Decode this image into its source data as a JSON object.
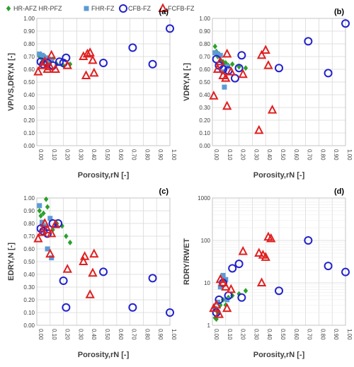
{
  "legend": [
    {
      "label": "HR-AFZ HR-PFZ",
      "marker": "diamond",
      "color": "#2ca02c"
    },
    {
      "label": "FHR-FZ",
      "marker": "square",
      "color": "#5b9bd5"
    },
    {
      "label": "CFB-FZ",
      "marker": "circle",
      "color": "#2222cc"
    },
    {
      "label": "FCFB-FZ",
      "marker": "triangle",
      "color": "#e02020"
    }
  ],
  "chart_data": [
    {
      "panel": "(a)",
      "type": "scatter",
      "ylabel": "VP/VS,DRY,N [-]",
      "xlabel": "Porosity,rN [-]",
      "xlim": [
        0,
        1
      ],
      "ylim": [
        0,
        1
      ],
      "xticks": [
        "0.00",
        "0.10",
        "0.20",
        "0.30",
        "0.40",
        "0.50",
        "0.60",
        "0.70",
        "0.80",
        "0.90",
        "1.00"
      ],
      "yticks": [
        "0.00",
        "0.10",
        "0.20",
        "0.30",
        "0.40",
        "0.50",
        "0.60",
        "0.70",
        "0.80",
        "0.90",
        "1.00"
      ],
      "series": [
        {
          "name": "HR-AFZ HR-PFZ",
          "points": [
            [
              0.02,
              0.7
            ],
            [
              0.03,
              0.72
            ],
            [
              0.04,
              0.68
            ],
            [
              0.05,
              0.66
            ],
            [
              0.06,
              0.7
            ],
            [
              0.07,
              0.67
            ],
            [
              0.08,
              0.64
            ],
            [
              0.1,
              0.66
            ],
            [
              0.12,
              0.68
            ],
            [
              0.15,
              0.64
            ],
            [
              0.2,
              0.63
            ],
            [
              0.25,
              0.64
            ]
          ]
        },
        {
          "name": "FHR-FZ",
          "points": [
            [
              0.02,
              0.72
            ],
            [
              0.04,
              0.71
            ],
            [
              0.05,
              0.7
            ],
            [
              0.07,
              0.69
            ],
            [
              0.09,
              0.68
            ],
            [
              0.11,
              0.67
            ]
          ]
        },
        {
          "name": "CFB-FZ",
          "points": [
            [
              0.03,
              0.66
            ],
            [
              0.05,
              0.64
            ],
            [
              0.08,
              0.65
            ],
            [
              0.12,
              0.63
            ],
            [
              0.17,
              0.66
            ],
            [
              0.2,
              0.65
            ],
            [
              0.22,
              0.69
            ],
            [
              0.5,
              0.65
            ],
            [
              0.72,
              0.77
            ],
            [
              0.87,
              0.64
            ],
            [
              1.0,
              0.92
            ]
          ]
        },
        {
          "name": "FCFB-FZ",
          "points": [
            [
              0.01,
              0.58
            ],
            [
              0.04,
              0.63
            ],
            [
              0.06,
              0.66
            ],
            [
              0.08,
              0.6
            ],
            [
              0.1,
              0.62
            ],
            [
              0.11,
              0.71
            ],
            [
              0.14,
              0.6
            ],
            [
              0.23,
              0.63
            ],
            [
              0.35,
              0.7
            ],
            [
              0.37,
              0.55
            ],
            [
              0.38,
              0.72
            ],
            [
              0.4,
              0.73
            ],
            [
              0.42,
              0.67
            ],
            [
              0.43,
              0.57
            ]
          ]
        }
      ]
    },
    {
      "panel": "(b)",
      "type": "scatter",
      "ylabel": "VDRY,N [-]",
      "xlabel": "Porosity,rN [-]",
      "xlim": [
        0,
        1
      ],
      "ylim": [
        0,
        1
      ],
      "xticks": [
        "0.00",
        "0.10",
        "0.20",
        "0.30",
        "0.40",
        "0.50",
        "0.60",
        "0.70",
        "0.80",
        "0.90",
        "1.00"
      ],
      "yticks": [
        "0.00",
        "0.10",
        "0.20",
        "0.30",
        "0.40",
        "0.50",
        "0.60",
        "0.70",
        "0.80",
        "0.90",
        "1.00"
      ],
      "series": [
        {
          "name": "HR-AFZ HR-PFZ",
          "points": [
            [
              0.02,
              0.78
            ],
            [
              0.03,
              0.74
            ],
            [
              0.04,
              0.7
            ],
            [
              0.06,
              0.67
            ],
            [
              0.08,
              0.66
            ],
            [
              0.1,
              0.65
            ],
            [
              0.12,
              0.63
            ],
            [
              0.15,
              0.64
            ],
            [
              0.2,
              0.62
            ],
            [
              0.25,
              0.61
            ]
          ]
        },
        {
          "name": "FHR-FZ",
          "points": [
            [
              0.02,
              0.73
            ],
            [
              0.04,
              0.72
            ],
            [
              0.06,
              0.71
            ],
            [
              0.08,
              0.58
            ],
            [
              0.09,
              0.46
            ],
            [
              0.11,
              0.62
            ]
          ]
        },
        {
          "name": "CFB-FZ",
          "points": [
            [
              0.03,
              0.68
            ],
            [
              0.05,
              0.63
            ],
            [
              0.08,
              0.6
            ],
            [
              0.12,
              0.59
            ],
            [
              0.17,
              0.53
            ],
            [
              0.2,
              0.61
            ],
            [
              0.22,
              0.71
            ],
            [
              0.5,
              0.61
            ],
            [
              0.72,
              0.82
            ],
            [
              0.87,
              0.57
            ],
            [
              1.0,
              0.96
            ]
          ]
        },
        {
          "name": "FCFB-FZ",
          "points": [
            [
              0.01,
              0.39
            ],
            [
              0.04,
              0.6
            ],
            [
              0.06,
              0.66
            ],
            [
              0.08,
              0.55
            ],
            [
              0.1,
              0.53
            ],
            [
              0.11,
              0.72
            ],
            [
              0.11,
              0.31
            ],
            [
              0.14,
              0.58
            ],
            [
              0.23,
              0.56
            ],
            [
              0.35,
              0.12
            ],
            [
              0.37,
              0.71
            ],
            [
              0.4,
              0.75
            ],
            [
              0.42,
              0.63
            ],
            [
              0.45,
              0.28
            ]
          ]
        }
      ]
    },
    {
      "panel": "(c)",
      "type": "scatter",
      "ylabel": "EDRY,N [-]",
      "xlabel": "Porosity,rN [-]",
      "xlim": [
        0,
        1
      ],
      "ylim": [
        0,
        1
      ],
      "xticks": [
        "0.00",
        "0.10",
        "0.20",
        "0.30",
        "0.40",
        "0.50",
        "0.60",
        "0.70",
        "0.80",
        "0.90",
        "1.00"
      ],
      "yticks": [
        "0.00",
        "0.10",
        "0.20",
        "0.30",
        "0.40",
        "0.50",
        "0.60",
        "0.70",
        "0.80",
        "0.90",
        "1.00"
      ],
      "series": [
        {
          "name": "HR-AFZ HR-PFZ",
          "points": [
            [
              0.02,
              0.9
            ],
            [
              0.03,
              0.86
            ],
            [
              0.04,
              0.8
            ],
            [
              0.05,
              0.88
            ],
            [
              0.07,
              0.99
            ],
            [
              0.08,
              0.93
            ],
            [
              0.1,
              0.83
            ],
            [
              0.12,
              0.75
            ],
            [
              0.15,
              0.8
            ],
            [
              0.19,
              0.78
            ],
            [
              0.22,
              0.7
            ],
            [
              0.25,
              0.65
            ]
          ]
        },
        {
          "name": "FHR-FZ",
          "points": [
            [
              0.02,
              0.94
            ],
            [
              0.04,
              0.81
            ],
            [
              0.06,
              0.78
            ],
            [
              0.08,
              0.6
            ],
            [
              0.1,
              0.84
            ],
            [
              0.11,
              0.53
            ]
          ]
        },
        {
          "name": "CFB-FZ",
          "points": [
            [
              0.03,
              0.76
            ],
            [
              0.05,
              0.74
            ],
            [
              0.08,
              0.72
            ],
            [
              0.12,
              0.8
            ],
            [
              0.16,
              0.8
            ],
            [
              0.2,
              0.35
            ],
            [
              0.22,
              0.14
            ],
            [
              0.5,
              0.42
            ],
            [
              0.72,
              0.14
            ],
            [
              0.87,
              0.37
            ],
            [
              1.0,
              0.1
            ]
          ]
        },
        {
          "name": "FCFB-FZ",
          "points": [
            [
              0.01,
              0.68
            ],
            [
              0.04,
              0.73
            ],
            [
              0.06,
              0.8
            ],
            [
              0.08,
              0.75
            ],
            [
              0.1,
              0.56
            ],
            [
              0.11,
              0.72
            ],
            [
              0.14,
              0.79
            ],
            [
              0.23,
              0.44
            ],
            [
              0.35,
              0.5
            ],
            [
              0.36,
              0.54
            ],
            [
              0.4,
              0.24
            ],
            [
              0.42,
              0.41
            ],
            [
              0.43,
              0.56
            ]
          ]
        }
      ]
    },
    {
      "panel": "(d)",
      "type": "scatter",
      "ylabel": "RDRY/RWET",
      "xlabel": "Porosity,rN [-]",
      "xlim": [
        0,
        1
      ],
      "ylim": [
        1,
        1000
      ],
      "yscale": "log",
      "xticks": [
        "0.00",
        "0.10",
        "0.20",
        "0.30",
        "0.40",
        "0.50",
        "0.60",
        "0.70",
        "0.80",
        "0.90",
        "1.00"
      ],
      "yticks": [
        "1",
        "10",
        "100",
        "1000"
      ],
      "series": [
        {
          "name": "HR-AFZ HR-PFZ",
          "points": [
            [
              0.02,
              1.5
            ],
            [
              0.03,
              1.4
            ],
            [
              0.04,
              2.0
            ],
            [
              0.06,
              3.0
            ],
            [
              0.08,
              4.0
            ],
            [
              0.1,
              3.0
            ],
            [
              0.12,
              4.5
            ],
            [
              0.15,
              5.0
            ],
            [
              0.2,
              5.5
            ],
            [
              0.25,
              6.5
            ]
          ]
        },
        {
          "name": "FHR-FZ",
          "points": [
            [
              0.02,
              2.5
            ],
            [
              0.04,
              3.5
            ],
            [
              0.06,
              8.0
            ],
            [
              0.08,
              15.0
            ],
            [
              0.1,
              12.0
            ],
            [
              0.11,
              4.0
            ]
          ]
        },
        {
          "name": "CFB-FZ",
          "points": [
            [
              0.03,
              2.0
            ],
            [
              0.05,
              4.0
            ],
            [
              0.08,
              10.0
            ],
            [
              0.12,
              5.0
            ],
            [
              0.15,
              22.0
            ],
            [
              0.2,
              28.0
            ],
            [
              0.22,
              4.5
            ],
            [
              0.5,
              6.5
            ],
            [
              0.72,
              100
            ],
            [
              0.87,
              25
            ],
            [
              1.0,
              18
            ]
          ]
        },
        {
          "name": "FCFB-FZ",
          "points": [
            [
              0.01,
              2.5
            ],
            [
              0.03,
              3.0
            ],
            [
              0.05,
              1.8
            ],
            [
              0.06,
              12.0
            ],
            [
              0.08,
              10.0
            ],
            [
              0.1,
              8.0
            ],
            [
              0.11,
              2.5
            ],
            [
              0.14,
              7.0
            ],
            [
              0.23,
              55.0
            ],
            [
              0.35,
              50.0
            ],
            [
              0.37,
              10.0
            ],
            [
              0.38,
              45.0
            ],
            [
              0.4,
              40.0
            ],
            [
              0.42,
              120.0
            ],
            [
              0.44,
              110.0
            ]
          ]
        }
      ]
    }
  ]
}
